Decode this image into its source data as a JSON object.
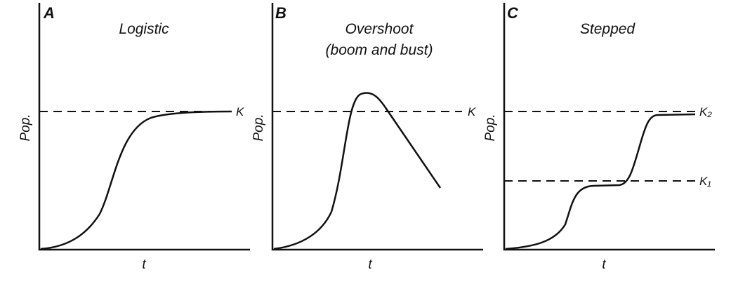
{
  "panels": [
    {
      "letter": "A",
      "title": [
        "Logistic"
      ],
      "y_label": "Pop.",
      "x_label": "t",
      "lines": [
        "K"
      ]
    },
    {
      "letter": "B",
      "title": [
        "Overshoot",
        "(boom and bust)"
      ],
      "y_label": "Pop.",
      "x_label": "t",
      "lines": [
        "K"
      ]
    },
    {
      "letter": "C",
      "title": [
        "Stepped"
      ],
      "y_label": "Pop.",
      "x_label": "t",
      "lines": [
        "K₂",
        "K₁"
      ]
    }
  ]
}
